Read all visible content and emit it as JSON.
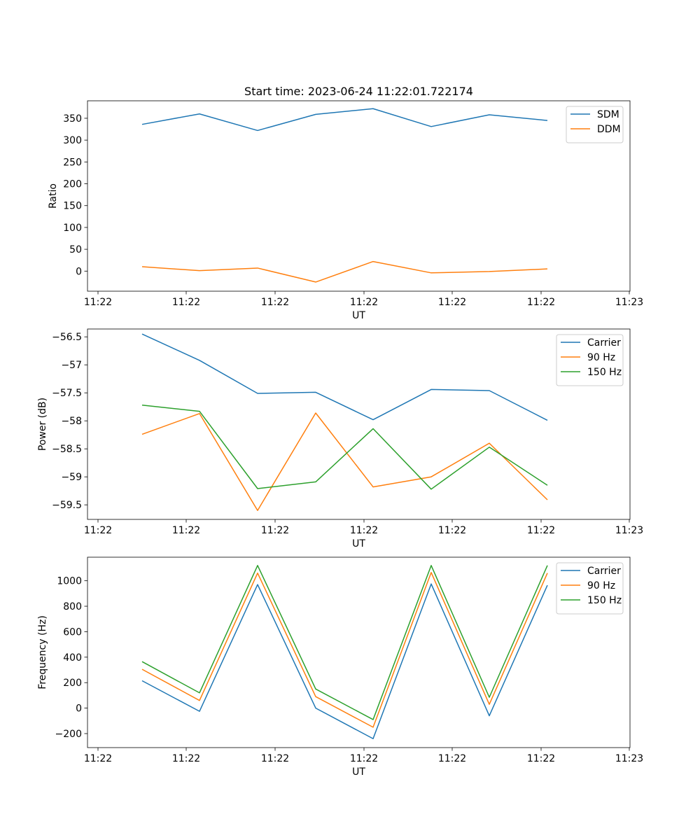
{
  "title": "Start time: 2023-06-24 11:22:01.722174",
  "chart_data": [
    {
      "type": "line",
      "xlabel": "UT",
      "ylabel": "Ratio",
      "x_tick_labels": [
        "11:22",
        "11:22",
        "11:22",
        "11:22",
        "11:22",
        "11:22",
        "11:23"
      ],
      "y_ticks": [
        0,
        50,
        100,
        150,
        200,
        250,
        300,
        350
      ],
      "ylim": [
        -46,
        390
      ],
      "legend_position": "top-right",
      "series": [
        {
          "name": "SDM",
          "color": "#1f77b4",
          "values": [
            336,
            360,
            322,
            359,
            372,
            331,
            358,
            345
          ]
        },
        {
          "name": "DDM",
          "color": "#ff7f0e",
          "values": [
            10,
            1,
            7,
            -25,
            22,
            -4,
            -1,
            5
          ]
        }
      ]
    },
    {
      "type": "line",
      "xlabel": "UT",
      "ylabel": "Power (dB)",
      "x_tick_labels": [
        "11:22",
        "11:22",
        "11:22",
        "11:22",
        "11:22",
        "11:22",
        "11:23"
      ],
      "y_ticks": [
        -56.5,
        -57.0,
        -57.5,
        -58.0,
        -58.5,
        -59.0,
        -59.5
      ],
      "ylim": [
        -59.76,
        -56.36
      ],
      "legend_position": "top-right",
      "series": [
        {
          "name": "Carrier",
          "color": "#1f77b4",
          "values": [
            -56.45,
            -56.92,
            -57.51,
            -57.49,
            -57.98,
            -57.44,
            -57.46,
            -57.99
          ]
        },
        {
          "name": "90 Hz",
          "color": "#ff7f0e",
          "values": [
            -58.24,
            -57.87,
            -59.6,
            -57.86,
            -59.18,
            -59.0,
            -58.4,
            -59.41
          ]
        },
        {
          "name": "150 Hz",
          "color": "#2ca02c",
          "values": [
            -57.72,
            -57.83,
            -59.21,
            -59.09,
            -58.14,
            -59.22,
            -58.47,
            -59.15
          ]
        }
      ]
    },
    {
      "type": "line",
      "xlabel": "UT",
      "ylabel": "Frequency (Hz)",
      "x_tick_labels": [
        "11:22",
        "11:22",
        "11:22",
        "11:22",
        "11:22",
        "11:22",
        "11:23"
      ],
      "y_ticks": [
        -200,
        0,
        200,
        400,
        600,
        800,
        1000
      ],
      "ylim": [
        -310,
        1185
      ],
      "legend_position": "top-right",
      "series": [
        {
          "name": "Carrier",
          "color": "#1f77b4",
          "values": [
            215,
            -25,
            970,
            0,
            -240,
            975,
            -60,
            965
          ]
        },
        {
          "name": "90 Hz",
          "color": "#ff7f0e",
          "values": [
            305,
            60,
            1060,
            90,
            -150,
            1065,
            30,
            1060
          ]
        },
        {
          "name": "150 Hz",
          "color": "#2ca02c",
          "values": [
            365,
            120,
            1120,
            150,
            -90,
            1120,
            85,
            1120
          ]
        }
      ]
    }
  ]
}
